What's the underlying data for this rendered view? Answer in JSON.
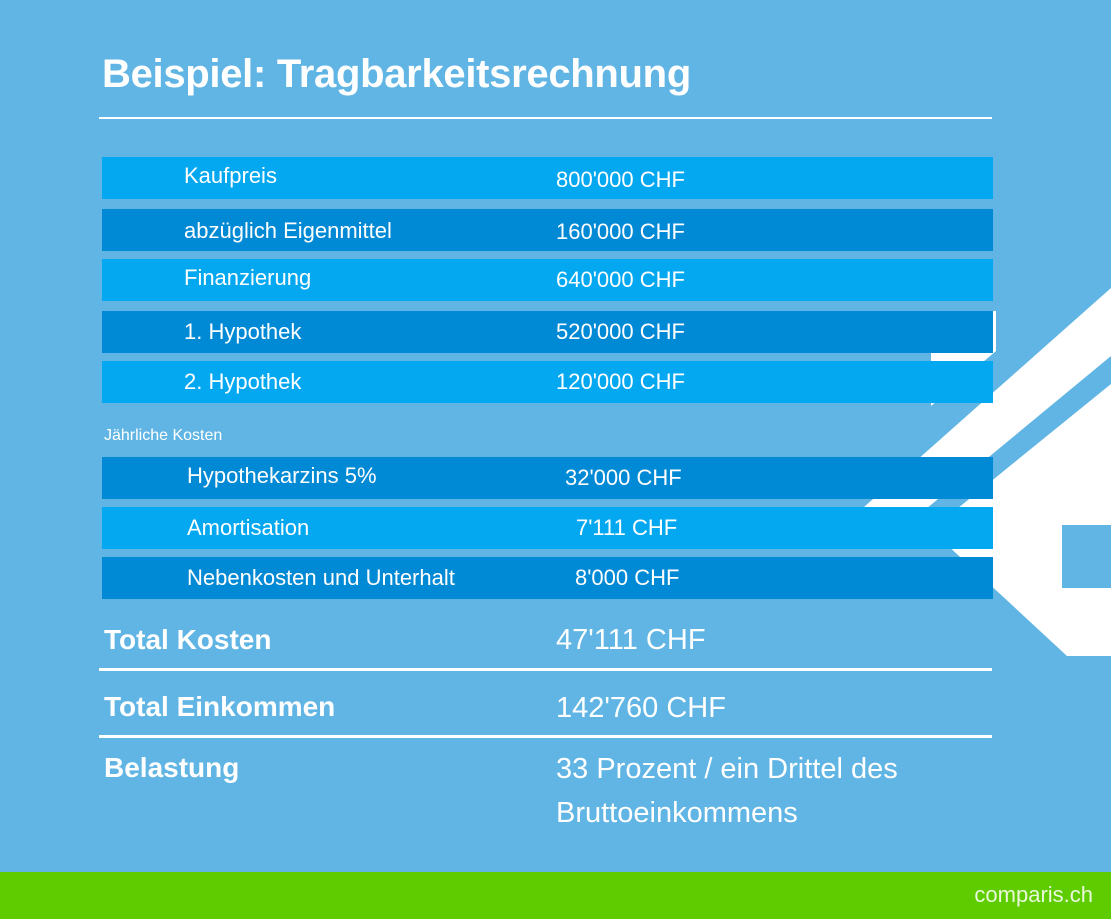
{
  "title": "Beispiel: Tragbarkeitsrechnung",
  "purchase_rows": [
    {
      "label": "Kaufpreis",
      "value": "800'000 CHF"
    },
    {
      "label": "abzüglich Eigenmittel",
      "value": "160'000 CHF"
    },
    {
      "label": "Finanzierung",
      "value": "640'000 CHF"
    },
    {
      "label": "1. Hypothek",
      "value": "520'000 CHF"
    },
    {
      "label": "2. Hypothek",
      "value": "120'000 CHF"
    }
  ],
  "annual_section_label": "Jährliche Kosten",
  "annual_rows": [
    {
      "label": "Hypothekarzins 5%",
      "value": "32'000 CHF"
    },
    {
      "label": "Amortisation",
      "value": "7'111 CHF"
    },
    {
      "label": "Nebenkosten und Unterhalt",
      "value": "8'000 CHF"
    }
  ],
  "totals": {
    "costs_label": "Total Kosten",
    "costs_value": "47'111 CHF",
    "income_label": "Total Einkommen",
    "income_value": "142'760 CHF",
    "burden_label": "Belastung",
    "burden_value_line1": "33 Prozent / ein Drittel des",
    "burden_value_line2": "Bruttoeinkommens"
  },
  "brand": "comparis.ch",
  "colors": {
    "background": "#60b5e4",
    "row_light": "#04a8f0",
    "row_dark": "#0089d4",
    "footer": "#5fcc00",
    "text": "#ffffff"
  }
}
